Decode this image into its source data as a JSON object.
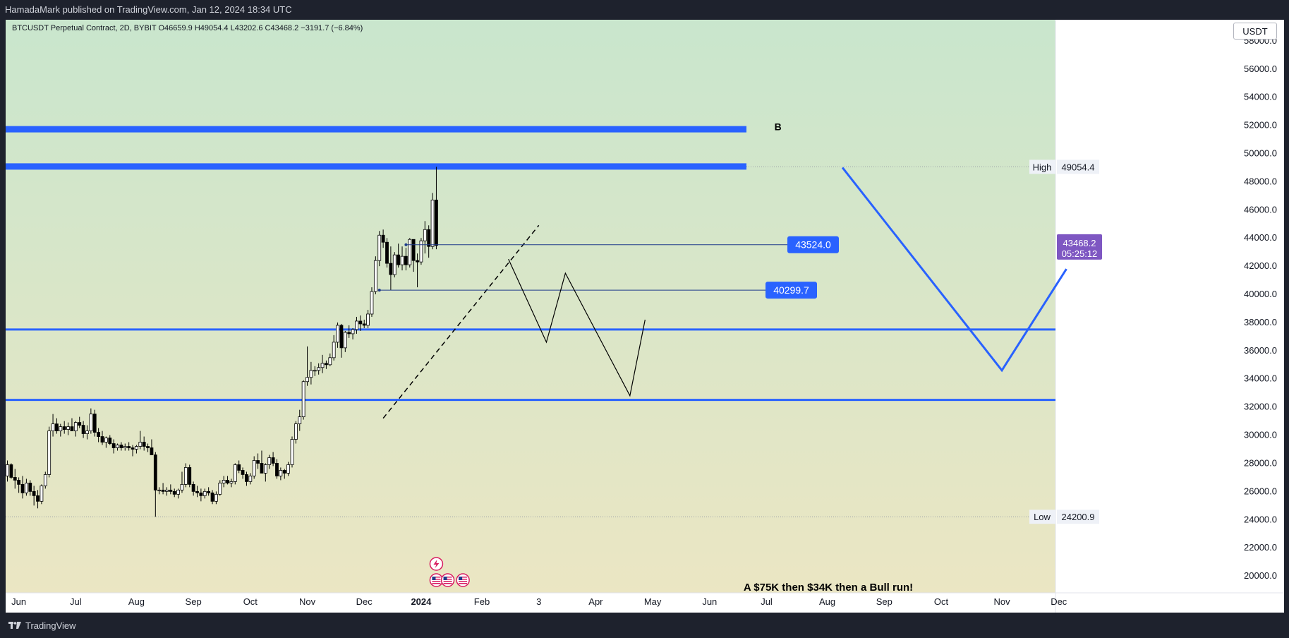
{
  "header": {
    "published_text": "HamadaMark published on TradingView.com, Jan 12, 2024 18:34 UTC"
  },
  "footer": {
    "brand": "TradingView",
    "logo_icon": "tradingview-logo-icon"
  },
  "colors": {
    "bg_top": "#c9e6cd",
    "bg_bottom": "#ebe6c3",
    "accent_blue": "#2962ff",
    "last_price_purple": "#7e57c2",
    "candle_up": "#ffffff",
    "candle_down": "#000000"
  },
  "chart_data": {
    "type": "candlestick",
    "symbol_legend": "BTCUSDT Perpetual Contract, 2D, BYBIT  O46659.9  H49054.4  L43202.6  C43468.2  −3191.7 (−6.84%)",
    "currency": "USDT",
    "ylim": [
      18800,
      59500
    ],
    "y_ticks": [
      "58000.0",
      "56000.0",
      "54000.0",
      "52000.0",
      "50000.0",
      "48000.0",
      "46000.0",
      "44000.0",
      "42000.0",
      "40000.0",
      "38000.0",
      "36000.0",
      "34000.0",
      "32000.0",
      "30000.0",
      "28000.0",
      "26000.0",
      "24000.0",
      "22000.0",
      "20000.0"
    ],
    "x_labels": [
      {
        "label": "Jun",
        "i": 3
      },
      {
        "label": "Jul",
        "i": 18
      },
      {
        "label": "Aug",
        "i": 34
      },
      {
        "label": "Sep",
        "i": 49
      },
      {
        "label": "Oct",
        "i": 64
      },
      {
        "label": "Nov",
        "i": 79
      },
      {
        "label": "Dec",
        "i": 94
      },
      {
        "label": "2024",
        "i": 109,
        "bold": true
      },
      {
        "label": "Feb",
        "i": 125
      },
      {
        "label": "3",
        "i": 140
      },
      {
        "label": "Apr",
        "i": 155
      },
      {
        "label": "May",
        "i": 170
      },
      {
        "label": "Jun",
        "i": 185
      },
      {
        "label": "Jul",
        "i": 200
      },
      {
        "label": "Aug",
        "i": 216
      },
      {
        "label": "Sep",
        "i": 231
      },
      {
        "label": "Oct",
        "i": 246
      },
      {
        "label": "Nov",
        "i": 262
      },
      {
        "label": "Dec",
        "i": 277
      }
    ],
    "candles": [
      [
        27100,
        28200,
        26700,
        27900
      ],
      [
        27900,
        28000,
        26900,
        27000
      ],
      [
        27000,
        27600,
        26200,
        26800
      ],
      [
        26800,
        27000,
        25900,
        26500
      ],
      [
        26500,
        27100,
        25500,
        25900
      ],
      [
        25900,
        26900,
        25700,
        26600
      ],
      [
        26600,
        26800,
        25700,
        26000
      ],
      [
        26000,
        26400,
        25000,
        25700
      ],
      [
        25700,
        26100,
        24800,
        25300
      ],
      [
        25300,
        26500,
        25100,
        26400
      ],
      [
        26400,
        27400,
        26200,
        27200
      ],
      [
        27200,
        30600,
        27000,
        30300
      ],
      [
        30300,
        31500,
        29900,
        30800
      ],
      [
        30800,
        31200,
        30100,
        30300
      ],
      [
        30300,
        30800,
        29900,
        30600
      ],
      [
        30600,
        31000,
        30100,
        30400
      ],
      [
        30400,
        30900,
        30000,
        30600
      ],
      [
        30600,
        31200,
        30300,
        30300
      ],
      [
        30300,
        31000,
        29900,
        30900
      ],
      [
        30900,
        31300,
        30500,
        30700
      ],
      [
        30700,
        31000,
        29800,
        30100
      ],
      [
        30100,
        30700,
        29700,
        30300
      ],
      [
        30300,
        31900,
        30100,
        31500
      ],
      [
        31500,
        31800,
        29900,
        30200
      ],
      [
        30200,
        30500,
        29500,
        29900
      ],
      [
        29900,
        30300,
        29300,
        29500
      ],
      [
        29500,
        29900,
        29100,
        29800
      ],
      [
        29800,
        30000,
        29300,
        29400
      ],
      [
        29400,
        29700,
        28700,
        29100
      ],
      [
        29100,
        29400,
        28900,
        29300
      ],
      [
        29300,
        29500,
        28900,
        29100
      ],
      [
        29100,
        29400,
        28900,
        29200
      ],
      [
        29200,
        29500,
        28900,
        29100
      ],
      [
        29100,
        29300,
        28500,
        29000
      ],
      [
        29000,
        29300,
        28700,
        29200
      ],
      [
        29200,
        30300,
        29000,
        29500
      ],
      [
        29500,
        29900,
        28900,
        29200
      ],
      [
        29200,
        29400,
        28800,
        29100
      ],
      [
        29100,
        29700,
        28700,
        28600
      ],
      [
        28600,
        28800,
        24200,
        26100
      ],
      [
        26100,
        26300,
        25800,
        26100
      ],
      [
        26100,
        26600,
        25800,
        26000
      ],
      [
        26000,
        26300,
        25700,
        26100
      ],
      [
        26100,
        26500,
        25800,
        26000
      ],
      [
        26000,
        26200,
        25600,
        25800
      ],
      [
        25800,
        26200,
        25500,
        26100
      ],
      [
        26100,
        27400,
        25900,
        26500
      ],
      [
        26500,
        28000,
        26300,
        27700
      ],
      [
        27700,
        27900,
        26300,
        26500
      ],
      [
        26500,
        26700,
        25700,
        26000
      ],
      [
        26000,
        26400,
        25600,
        25900
      ],
      [
        25900,
        26200,
        25300,
        25700
      ],
      [
        25700,
        26200,
        25500,
        26000
      ],
      [
        26000,
        26300,
        25700,
        25900
      ],
      [
        25900,
        26100,
        25100,
        25300
      ],
      [
        25300,
        26000,
        25100,
        25800
      ],
      [
        25800,
        26800,
        25700,
        26600
      ],
      [
        26600,
        27100,
        26300,
        26800
      ],
      [
        26800,
        27100,
        26500,
        26600
      ],
      [
        26600,
        26900,
        26300,
        26700
      ],
      [
        26700,
        28000,
        26500,
        27900
      ],
      [
        27900,
        28200,
        27300,
        27500
      ],
      [
        27500,
        27700,
        26900,
        27200
      ],
      [
        27200,
        27400,
        26400,
        26700
      ],
      [
        26700,
        27300,
        26500,
        27100
      ],
      [
        27100,
        28500,
        26900,
        28200
      ],
      [
        28200,
        28700,
        27600,
        28000
      ],
      [
        28000,
        28900,
        27300,
        27300
      ],
      [
        27300,
        28000,
        26700,
        27900
      ],
      [
        27900,
        28600,
        27600,
        28400
      ],
      [
        28400,
        28800,
        27800,
        28000
      ],
      [
        28000,
        28300,
        26900,
        27100
      ],
      [
        27100,
        27700,
        26800,
        27500
      ],
      [
        27500,
        27600,
        26900,
        27300
      ],
      [
        27300,
        28100,
        27100,
        27900
      ],
      [
        27900,
        29900,
        27700,
        29700
      ],
      [
        29700,
        31000,
        29400,
        30800
      ],
      [
        30800,
        31800,
        30300,
        31300
      ],
      [
        31300,
        33900,
        31100,
        33800
      ],
      [
        33800,
        36300,
        33500,
        34100
      ],
      [
        34100,
        35200,
        33600,
        34600
      ],
      [
        34600,
        34900,
        34200,
        34600
      ],
      [
        34600,
        35100,
        34300,
        34800
      ],
      [
        34800,
        35700,
        34400,
        35100
      ],
      [
        35100,
        35300,
        34700,
        35000
      ],
      [
        35000,
        35800,
        34900,
        35500
      ],
      [
        35500,
        37100,
        35300,
        36600
      ],
      [
        36600,
        38000,
        36200,
        37800
      ],
      [
        37800,
        37900,
        35500,
        36200
      ],
      [
        36200,
        37400,
        35900,
        37300
      ],
      [
        37300,
        37800,
        36900,
        37200
      ],
      [
        37200,
        37600,
        36800,
        37500
      ],
      [
        37500,
        38400,
        37200,
        38100
      ],
      [
        38100,
        38500,
        37400,
        37900
      ],
      [
        37900,
        38200,
        37600,
        37800
      ],
      [
        37800,
        38900,
        37600,
        38600
      ],
      [
        38600,
        40500,
        38400,
        40200
      ],
      [
        40200,
        42700,
        40000,
        42400
      ],
      [
        42400,
        44500,
        42000,
        44200
      ],
      [
        44200,
        44600,
        43300,
        43700
      ],
      [
        43700,
        44000,
        41900,
        42200
      ],
      [
        42200,
        43400,
        40300,
        41400
      ],
      [
        41400,
        43000,
        41200,
        42800
      ],
      [
        42800,
        43600,
        41900,
        42100
      ],
      [
        42100,
        43400,
        41700,
        42700
      ],
      [
        42700,
        43300,
        41700,
        42100
      ],
      [
        42100,
        44000,
        41900,
        43900
      ],
      [
        43900,
        43900,
        41600,
        42400
      ],
      [
        42400,
        42900,
        40500,
        42300
      ],
      [
        42300,
        44000,
        42100,
        43800
      ],
      [
        43800,
        45200,
        42900,
        44600
      ],
      [
        44600,
        44900,
        42600,
        43400
      ],
      [
        43400,
        47200,
        43200,
        46700
      ],
      [
        46700,
        49054.4,
        43202.6,
        43468.2
      ]
    ],
    "horizontal_levels": [
      51700,
      49054.4,
      37500,
      32500
    ],
    "hline_markers": [
      {
        "label": "43524.0",
        "price": 43524.0
      },
      {
        "label": "40299.7",
        "price": 40299.7
      }
    ],
    "high": {
      "label": "High",
      "value": "49054.4",
      "price": 49054.4
    },
    "low": {
      "label": "Low",
      "value": "24200.9",
      "price": 24200.9
    },
    "last_price": {
      "value": "43468.2",
      "countdown": "05:25:12",
      "price": 43468.2
    },
    "dashed_trendline": [
      [
        99,
        31200
      ],
      [
        140,
        44900
      ]
    ],
    "projection_path_black": [
      [
        132,
        42500
      ],
      [
        142,
        36600
      ],
      [
        147,
        41500
      ],
      [
        164,
        32800
      ],
      [
        168,
        38200
      ]
    ],
    "projection_path_blue": [
      [
        220,
        49000
      ],
      [
        262,
        34600
      ],
      [
        279,
        41800
      ]
    ],
    "annotations": [
      {
        "text": "B",
        "i": 203,
        "price": 51900
      },
      {
        "text": "A $75K then $34K then a Bull run!",
        "i": 190,
        "price": 19500
      }
    ],
    "event_icons": [
      {
        "name": "lightning-icon",
        "i": 113
      },
      {
        "name": "us-flag-icon",
        "i": 113
      },
      {
        "name": "us-flag-icon",
        "i": 116
      },
      {
        "name": "us-flag-icon",
        "i": 120
      }
    ]
  }
}
